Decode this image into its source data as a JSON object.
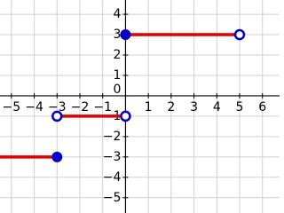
{
  "chart_data": {
    "type": "step",
    "xlim": [
      -5.5,
      6.75
    ],
    "ylim": [
      -5.75,
      4.7
    ],
    "xticks": [
      {
        "value": -5,
        "label": "−5"
      },
      {
        "value": -4,
        "label": "−4"
      },
      {
        "value": -3,
        "label": "−3"
      },
      {
        "value": -2,
        "label": "−2"
      },
      {
        "value": -1,
        "label": "−1"
      },
      1,
      2,
      3,
      4,
      5,
      6
    ],
    "yticks": [
      {
        "value": -5,
        "label": "−5"
      },
      {
        "value": -4,
        "label": "−4"
      },
      {
        "value": -3,
        "label": "−3"
      },
      {
        "value": -2,
        "label": "−2"
      },
      {
        "value": -1,
        "label": "−1"
      },
      0,
      1,
      2,
      3,
      4
    ],
    "grid": true,
    "grid_color": "#d0d0d0",
    "line_color": "#e00000",
    "marker_color": "#0000cc",
    "segments": [
      {
        "x": [
          -5.5,
          -3
        ],
        "y": [
          -3,
          -3
        ],
        "endpoints": [
          {
            "x": -3,
            "y": -3,
            "closed": true
          }
        ]
      },
      {
        "x": [
          -3,
          0
        ],
        "y": [
          -1,
          -1
        ],
        "endpoints": [
          {
            "x": -3,
            "y": -1,
            "closed": false
          },
          {
            "x": 0,
            "y": -1,
            "closed": false
          }
        ]
      },
      {
        "x": [
          0,
          5
        ],
        "y": [
          3,
          3
        ],
        "endpoints": [
          {
            "x": 0,
            "y": 3,
            "closed": true
          },
          {
            "x": 5,
            "y": 3,
            "closed": false
          }
        ]
      }
    ]
  }
}
